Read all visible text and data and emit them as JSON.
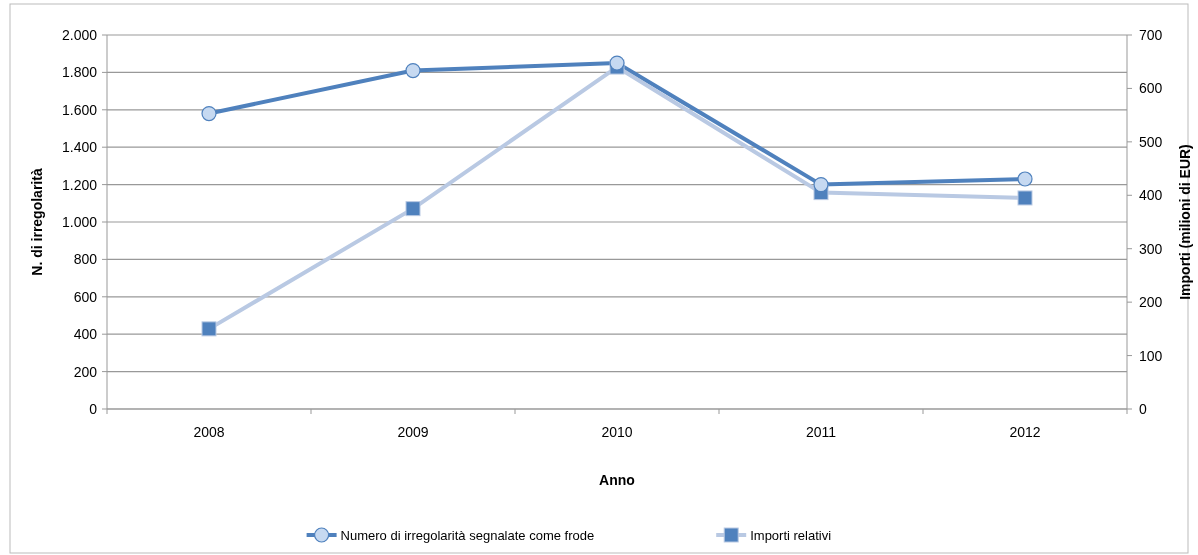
{
  "chart_data": {
    "type": "line",
    "xlabel": "Anno",
    "ylabel": "N. di irregolarità",
    "y2label": "Importi (milioni di EUR)",
    "categories": [
      "2008",
      "2009",
      "2010",
      "2011",
      "2012"
    ],
    "series": [
      {
        "name": "Numero di irregolarità segnalate come frode",
        "color": "#4f81bd",
        "marker": "circle",
        "values": [
          1580,
          1810,
          1850,
          1200,
          1230
        ]
      },
      {
        "name": "Importi relativi",
        "color": "#b9c9e3",
        "marker": "square",
        "axis": "y2",
        "values": [
          150,
          375,
          640,
          405,
          395
        ]
      }
    ],
    "ylim": [
      0,
      2000
    ],
    "yticks": [
      {
        "value": 0,
        "label": "0"
      },
      {
        "value": 200,
        "label": "200"
      },
      {
        "value": 400,
        "label": "400"
      },
      {
        "value": 600,
        "label": "600"
      },
      {
        "value": 800,
        "label": "800"
      },
      {
        "value": 1000,
        "label": "1.000"
      },
      {
        "value": 1200,
        "label": "1.200"
      },
      {
        "value": 1400,
        "label": "1.400"
      },
      {
        "value": 1600,
        "label": "1.600"
      },
      {
        "value": 1800,
        "label": "1.800"
      },
      {
        "value": 2000,
        "label": "2.000"
      }
    ],
    "y2lim": [
      0,
      700
    ],
    "y2ticks": [
      0,
      100,
      200,
      300,
      400,
      500,
      600,
      700
    ],
    "grid": "y",
    "legend": "bottom"
  }
}
